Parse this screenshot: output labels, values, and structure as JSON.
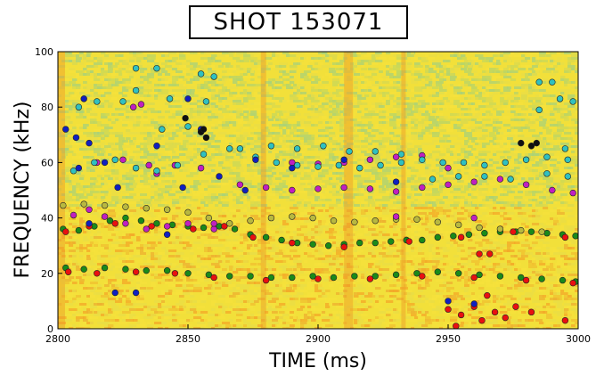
{
  "chart_data": {
    "type": "scatter",
    "title": "SHOT 153071",
    "xlabel": "TIME (ms)",
    "ylabel": "FREQUENCY (kHz)",
    "xlim": [
      2800,
      3000
    ],
    "ylim": [
      0,
      100
    ],
    "xticks": [
      "2800",
      "2850",
      "2900",
      "2950",
      "3000"
    ],
    "yticks": [
      "0",
      "20",
      "40",
      "60",
      "80",
      "100"
    ],
    "background": "spectrogram",
    "colors": {
      "green": "#1a8a1a",
      "red": "#e81010",
      "olive": "#b8b840",
      "magenta": "#c020c0",
      "cyan": "#30c0c0",
      "blue": "#1020c0",
      "black": "#101010"
    },
    "series": [
      {
        "color": "green",
        "points": [
          [
            2802,
            36
          ],
          [
            2808,
            35.5
          ],
          [
            2814,
            37
          ],
          [
            2820,
            39
          ],
          [
            2826,
            40
          ],
          [
            2832,
            39
          ],
          [
            2838,
            38
          ],
          [
            2844,
            37.5
          ],
          [
            2850,
            37
          ],
          [
            2856,
            36.5
          ],
          [
            2862,
            37
          ],
          [
            2868,
            36
          ],
          [
            2874,
            34
          ],
          [
            2880,
            33
          ],
          [
            2886,
            32
          ],
          [
            2892,
            31
          ],
          [
            2898,
            30.5
          ],
          [
            2904,
            30
          ],
          [
            2910,
            30.5
          ],
          [
            2916,
            31
          ],
          [
            2922,
            31
          ],
          [
            2928,
            31.5
          ],
          [
            2934,
            32
          ],
          [
            2940,
            32
          ],
          [
            2946,
            33
          ],
          [
            2952,
            33.5
          ],
          [
            2958,
            34
          ],
          [
            2964,
            34.5
          ],
          [
            2970,
            35
          ],
          [
            2976,
            35
          ],
          [
            2982,
            35
          ],
          [
            2988,
            34.5
          ],
          [
            2994,
            34
          ],
          [
            2999,
            33.5
          ],
          [
            2803,
            22
          ],
          [
            2810,
            21.5
          ],
          [
            2818,
            22
          ],
          [
            2826,
            21.5
          ],
          [
            2834,
            21
          ],
          [
            2842,
            21
          ],
          [
            2850,
            20
          ],
          [
            2858,
            19.5
          ],
          [
            2866,
            19
          ],
          [
            2874,
            19
          ],
          [
            2882,
            18.5
          ],
          [
            2890,
            18.5
          ],
          [
            2898,
            19
          ],
          [
            2906,
            18.5
          ],
          [
            2914,
            19
          ],
          [
            2922,
            19
          ],
          [
            2930,
            19.5
          ],
          [
            2938,
            20
          ],
          [
            2946,
            20.5
          ],
          [
            2954,
            20
          ],
          [
            2962,
            19.5
          ],
          [
            2970,
            19
          ],
          [
            2978,
            18.5
          ],
          [
            2986,
            18
          ],
          [
            2994,
            17.5
          ],
          [
            2999,
            17
          ]
        ]
      },
      {
        "color": "red",
        "points": [
          [
            2803,
            35
          ],
          [
            2812,
            37
          ],
          [
            2822,
            38
          ],
          [
            2836,
            37
          ],
          [
            2852,
            36
          ],
          [
            2864,
            37
          ],
          [
            2875,
            33
          ],
          [
            2890,
            31
          ],
          [
            2910,
            29.5
          ],
          [
            2935,
            31.5
          ],
          [
            2955,
            33
          ],
          [
            2975,
            35
          ],
          [
            2995,
            33
          ],
          [
            2804,
            20.5
          ],
          [
            2815,
            20
          ],
          [
            2830,
            20.5
          ],
          [
            2845,
            20
          ],
          [
            2860,
            18.5
          ],
          [
            2880,
            17.5
          ],
          [
            2900,
            18
          ],
          [
            2920,
            18
          ],
          [
            2940,
            19
          ],
          [
            2960,
            18.5
          ],
          [
            2980,
            17.5
          ],
          [
            2998,
            16.5
          ],
          [
            2950,
            7
          ],
          [
            2955,
            5
          ],
          [
            2960,
            8
          ],
          [
            2963,
            3
          ],
          [
            2968,
            6
          ],
          [
            2972,
            4
          ],
          [
            2976,
            8
          ],
          [
            2982,
            6
          ],
          [
            2953,
            1
          ],
          [
            2965,
            12
          ],
          [
            2995,
            3
          ],
          [
            2962,
            27
          ],
          [
            2966,
            27
          ]
        ]
      },
      {
        "color": "olive",
        "points": [
          [
            2802,
            44.5
          ],
          [
            2810,
            45
          ],
          [
            2818,
            44.5
          ],
          [
            2826,
            44
          ],
          [
            2834,
            43.5
          ],
          [
            2842,
            43
          ],
          [
            2850,
            42
          ],
          [
            2858,
            40
          ],
          [
            2866,
            38
          ],
          [
            2874,
            39
          ],
          [
            2882,
            40
          ],
          [
            2890,
            40.5
          ],
          [
            2898,
            40
          ],
          [
            2906,
            39
          ],
          [
            2914,
            38.5
          ],
          [
            2922,
            39
          ],
          [
            2930,
            39.5
          ],
          [
            2938,
            39.5
          ],
          [
            2946,
            38.5
          ],
          [
            2954,
            37.5
          ],
          [
            2962,
            36.5
          ],
          [
            2970,
            36
          ],
          [
            2978,
            35.5
          ],
          [
            2986,
            35
          ]
        ]
      },
      {
        "color": "magenta",
        "points": [
          [
            2806,
            41
          ],
          [
            2812,
            43
          ],
          [
            2818,
            40.5
          ],
          [
            2826,
            38
          ],
          [
            2834,
            36
          ],
          [
            2842,
            37
          ],
          [
            2850,
            38
          ],
          [
            2860,
            36
          ],
          [
            2870,
            52
          ],
          [
            2880,
            51
          ],
          [
            2890,
            50
          ],
          [
            2900,
            50.5
          ],
          [
            2910,
            51
          ],
          [
            2920,
            50.5
          ],
          [
            2930,
            49.5
          ],
          [
            2940,
            51
          ],
          [
            2950,
            52
          ],
          [
            2960,
            53
          ],
          [
            2970,
            54
          ],
          [
            2980,
            52
          ],
          [
            2990,
            50
          ],
          [
            2998,
            49
          ],
          [
            2815,
            60
          ],
          [
            2825,
            61
          ],
          [
            2835,
            59
          ],
          [
            2845,
            59
          ],
          [
            2855,
            58
          ],
          [
            2890,
            60
          ],
          [
            2900,
            59.5
          ],
          [
            2910,
            60
          ],
          [
            2920,
            61
          ],
          [
            2930,
            62
          ],
          [
            2940,
            62.5
          ],
          [
            2950,
            58
          ],
          [
            2829,
            80
          ],
          [
            2832,
            81
          ],
          [
            2838,
            56
          ],
          [
            2860,
            38
          ],
          [
            2930,
            40.5
          ],
          [
            2960,
            40
          ]
        ]
      },
      {
        "color": "cyan",
        "points": [
          [
            2806,
            57
          ],
          [
            2814,
            60
          ],
          [
            2822,
            61
          ],
          [
            2830,
            58
          ],
          [
            2838,
            57
          ],
          [
            2846,
            59
          ],
          [
            2856,
            63
          ],
          [
            2866,
            65
          ],
          [
            2876,
            62
          ],
          [
            2884,
            60
          ],
          [
            2892,
            59
          ],
          [
            2900,
            58.5
          ],
          [
            2908,
            59
          ],
          [
            2916,
            58
          ],
          [
            2924,
            59
          ],
          [
            2932,
            60
          ],
          [
            2940,
            61
          ],
          [
            2948,
            60
          ],
          [
            2956,
            60
          ],
          [
            2964,
            59
          ],
          [
            2972,
            60
          ],
          [
            2980,
            61
          ],
          [
            2988,
            62
          ],
          [
            2996,
            61
          ],
          [
            2882,
            66
          ],
          [
            2892,
            65
          ],
          [
            2902,
            66
          ],
          [
            2912,
            64
          ],
          [
            2922,
            64
          ],
          [
            2932,
            63
          ],
          [
            2944,
            54
          ],
          [
            2954,
            55
          ],
          [
            2964,
            55
          ],
          [
            2974,
            54
          ],
          [
            2988,
            56
          ],
          [
            2996,
            55
          ],
          [
            2830,
            94
          ],
          [
            2838,
            94
          ],
          [
            2855,
            92
          ],
          [
            2860,
            91
          ],
          [
            2808,
            80
          ],
          [
            2815,
            82
          ],
          [
            2825,
            82
          ],
          [
            2843,
            83
          ],
          [
            2857,
            82
          ],
          [
            2985,
            89
          ],
          [
            2990,
            89
          ],
          [
            2993,
            83
          ],
          [
            2998,
            82
          ],
          [
            2830,
            86
          ],
          [
            2840,
            72
          ],
          [
            2850,
            73
          ],
          [
            2995,
            65
          ],
          [
            2870,
            65
          ],
          [
            2985,
            79
          ]
        ]
      },
      {
        "color": "blue",
        "points": [
          [
            2810,
            83
          ],
          [
            2803,
            72
          ],
          [
            2807,
            69
          ],
          [
            2812,
            67
          ],
          [
            2808,
            58
          ],
          [
            2818,
            60
          ],
          [
            2823,
            51
          ],
          [
            2838,
            66
          ],
          [
            2848,
            51
          ],
          [
            2862,
            55
          ],
          [
            2872,
            50
          ],
          [
            2876,
            61
          ],
          [
            2890,
            58
          ],
          [
            2910,
            61
          ],
          [
            2930,
            53
          ],
          [
            2950,
            10
          ],
          [
            2960,
            9
          ],
          [
            2842,
            34
          ],
          [
            2812,
            38
          ],
          [
            2822,
            13
          ],
          [
            2830,
            13
          ],
          [
            2855,
            72
          ],
          [
            2850,
            83
          ]
        ]
      },
      {
        "color": "black",
        "points": [
          [
            2849,
            76
          ],
          [
            2855,
            71
          ],
          [
            2857,
            69
          ],
          [
            2978,
            67
          ],
          [
            2982,
            66
          ],
          [
            2984,
            67
          ],
          [
            2856,
            72
          ]
        ]
      }
    ]
  }
}
